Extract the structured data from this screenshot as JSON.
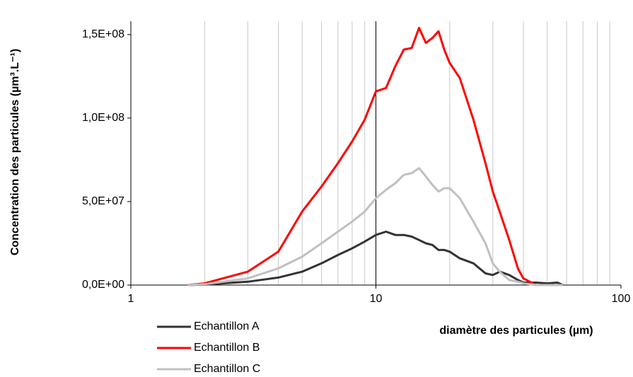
{
  "chart_data": {
    "type": "line",
    "xlabel": "diamètre des particules (µm)",
    "ylabel": "Concentration des particules  (µm³.L⁻¹)",
    "x": [
      1.7,
      2,
      3,
      4,
      5,
      6,
      7,
      8,
      9,
      10,
      11,
      12,
      13,
      14,
      15,
      16,
      17,
      18,
      19,
      20,
      22,
      25,
      28,
      30,
      32,
      35,
      38,
      40,
      45,
      50,
      55,
      58
    ],
    "series": [
      {
        "name": "Echantillon A",
        "color": "#333333",
        "values": [
          0,
          300000,
          2000000,
          4500000,
          8000000,
          13000000,
          18000000,
          22000000,
          26000000,
          30000000,
          32000000,
          30000000,
          30000000,
          29000000,
          27000000,
          25000000,
          24000000,
          21000000,
          21000000,
          20000000,
          16000000,
          13000000,
          7000000,
          6000000,
          8000000,
          6000000,
          3000000,
          1500000,
          1500000,
          1000000,
          1500000,
          0
        ]
      },
      {
        "name": "Echantillon B",
        "color": "#ff0000",
        "values": [
          0,
          1000000,
          8000000,
          20000000,
          44000000,
          59000000,
          73000000,
          86000000,
          99000000,
          116000000,
          118000000,
          131000000,
          141000000,
          142000000,
          154000000,
          145000000,
          148000000,
          152000000,
          141000000,
          133000000,
          124000000,
          99000000,
          73000000,
          56000000,
          44000000,
          27000000,
          9800000,
          4000000,
          0,
          0,
          0,
          0
        ]
      },
      {
        "name": "Echantillon C",
        "color": "#c0c0c0",
        "values": [
          0,
          500000,
          4000000,
          10000000,
          17000000,
          25000000,
          32000000,
          38000000,
          44000000,
          52000000,
          57000000,
          61000000,
          66000000,
          67000000,
          70000000,
          65000000,
          60000000,
          56000000,
          58000000,
          58000000,
          52000000,
          38000000,
          25000000,
          13000000,
          8000000,
          3000000,
          2000000,
          1000000,
          0,
          0,
          0,
          0
        ]
      }
    ],
    "xscale": "log",
    "xlim": [
      1,
      100
    ],
    "xticks": [
      1,
      10,
      100
    ],
    "ylim": [
      0,
      158000000
    ],
    "yticks": [
      {
        "value": 0,
        "label": "0,0E+00"
      },
      {
        "value": 50000000,
        "label": "5,0E+07"
      },
      {
        "value": 100000000,
        "label": "1,0E+08"
      },
      {
        "value": 150000000,
        "label": "1,5E+08"
      }
    ],
    "grid": true,
    "legend": "lower left"
  }
}
